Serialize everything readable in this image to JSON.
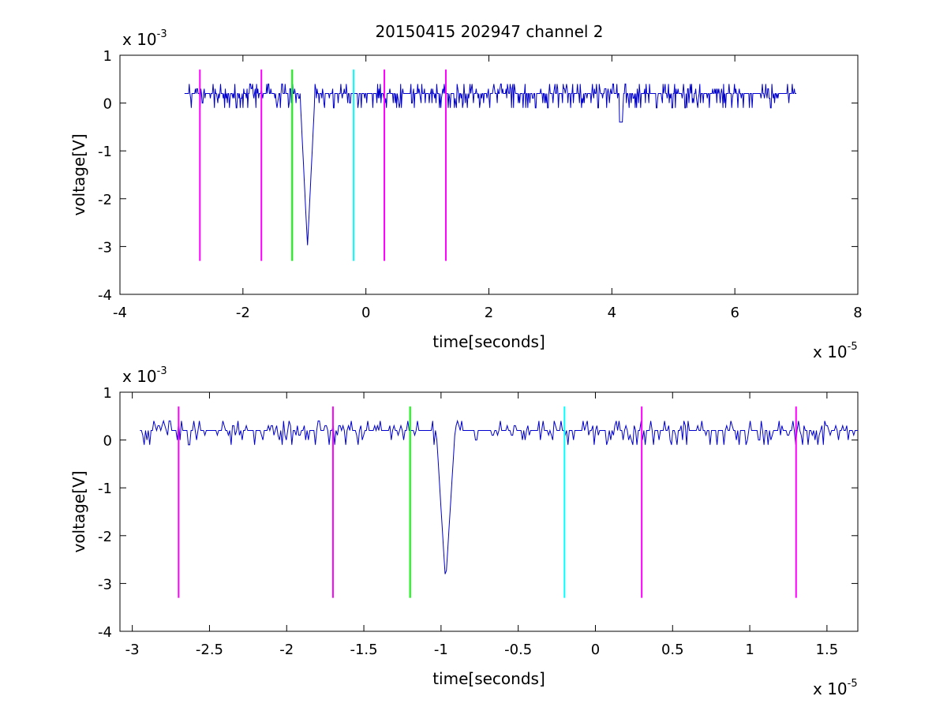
{
  "figure_title": "20150415 202947 channel 2",
  "chart_data": [
    {
      "type": "line",
      "title": "20150415 202947 channel 2",
      "xlabel": "time[seconds]",
      "ylabel": "voltage[V]",
      "x_exponent": "x 10",
      "x_exponent_power": "-5",
      "y_exponent": "x 10",
      "y_exponent_power": "-3",
      "xlim": [
        -4,
        8
      ],
      "ylim": [
        -4,
        1
      ],
      "xticks": [
        -4,
        -2,
        0,
        2,
        4,
        6,
        8
      ],
      "xtick_labels": [
        "-4",
        "-2",
        "0",
        "2",
        "4",
        "6",
        "8"
      ],
      "yticks": [
        -4,
        -3,
        -2,
        -1,
        0,
        1
      ],
      "ytick_labels": [
        "-4",
        "-3",
        "-2",
        "-1",
        "0",
        "1"
      ],
      "grid": false,
      "signal": {
        "color": "#0000cc",
        "x_range": [
          -2.95,
          7.0
        ],
        "baseline": 0.15,
        "noise_amplitude": 0.22,
        "spike": {
          "x": -0.95,
          "min": -3.0,
          "width": 0.12
        },
        "small_dip": {
          "x": 4.15,
          "min": -0.4
        }
      },
      "markers": [
        {
          "x": -2.7,
          "color": "#ff00ff",
          "y_top": 0.7,
          "y_bottom": -3.3
        },
        {
          "x": -1.7,
          "color": "#ff00ff",
          "y_top": 0.7,
          "y_bottom": -3.3
        },
        {
          "x": -1.2,
          "color": "#00ff00",
          "y_top": 0.7,
          "y_bottom": -3.3
        },
        {
          "x": -0.2,
          "color": "#00ffff",
          "y_top": 0.7,
          "y_bottom": -3.3
        },
        {
          "x": 0.3,
          "color": "#ff00ff",
          "y_top": 0.7,
          "y_bottom": -3.3
        },
        {
          "x": 1.3,
          "color": "#ff00ff",
          "y_top": 0.7,
          "y_bottom": -3.3
        }
      ]
    },
    {
      "type": "line",
      "xlabel": "time[seconds]",
      "ylabel": "voltage[V]",
      "x_exponent": "x 10",
      "x_exponent_power": "-5",
      "y_exponent": "x 10",
      "y_exponent_power": "-3",
      "xlim": [
        -3.08,
        1.7
      ],
      "ylim": [
        -4,
        1
      ],
      "xticks": [
        -3,
        -2.5,
        -2,
        -1.5,
        -1,
        -0.5,
        0,
        0.5,
        1,
        1.5
      ],
      "xtick_labels": [
        "-3",
        "-2.5",
        "-2",
        "-1.5",
        "-1",
        "-0.5",
        "0",
        "0.5",
        "1",
        "1.5"
      ],
      "yticks": [
        -4,
        -3,
        -2,
        -1,
        0,
        1
      ],
      "ytick_labels": [
        "-4",
        "-3",
        "-2",
        "-1",
        "0",
        "1"
      ],
      "grid": false,
      "signal": {
        "color": "#0000cc",
        "x_range": [
          -2.95,
          1.7
        ],
        "baseline": 0.15,
        "noise_amplitude": 0.22,
        "spike": {
          "x": -0.97,
          "min": -3.0,
          "width": 0.06
        }
      },
      "markers": [
        {
          "x": -2.7,
          "color": "#ff00ff",
          "y_top": 0.7,
          "y_bottom": -3.3
        },
        {
          "x": -1.7,
          "color": "#ff00ff",
          "y_top": 0.7,
          "y_bottom": -3.3
        },
        {
          "x": -1.2,
          "color": "#00ff00",
          "y_top": 0.7,
          "y_bottom": -3.3
        },
        {
          "x": -0.2,
          "color": "#00ffff",
          "y_top": 0.7,
          "y_bottom": -3.3
        },
        {
          "x": 0.3,
          "color": "#ff00ff",
          "y_top": 0.7,
          "y_bottom": -3.3
        },
        {
          "x": 1.3,
          "color": "#ff00ff",
          "y_top": 0.7,
          "y_bottom": -3.3
        }
      ]
    }
  ]
}
